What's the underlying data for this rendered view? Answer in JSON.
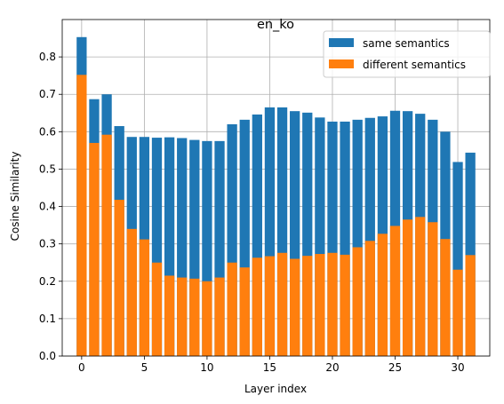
{
  "chart_data": {
    "type": "bar",
    "title": "en_ko",
    "xlabel": "Layer index",
    "ylabel": "Cosine Similarity",
    "xlim": [
      -1.55,
      32.55
    ],
    "ylim": [
      0.0,
      0.9
    ],
    "x_ticks": [
      0,
      5,
      10,
      15,
      20,
      25,
      30
    ],
    "y_ticks": [
      0.0,
      0.1,
      0.2,
      0.3,
      0.4,
      0.5,
      0.6,
      0.7,
      0.8
    ],
    "x": [
      0,
      1,
      2,
      3,
      4,
      5,
      6,
      7,
      8,
      9,
      10,
      11,
      12,
      13,
      14,
      15,
      16,
      17,
      18,
      19,
      20,
      21,
      22,
      23,
      24,
      25,
      26,
      27,
      28,
      29,
      30,
      31
    ],
    "series": [
      {
        "name": "same semantics",
        "color": "#1f77b4",
        "values": [
          0.853,
          0.687,
          0.7,
          0.615,
          0.586,
          0.586,
          0.584,
          0.585,
          0.583,
          0.578,
          0.575,
          0.575,
          0.62,
          0.632,
          0.646,
          0.665,
          0.665,
          0.655,
          0.651,
          0.638,
          0.627,
          0.627,
          0.632,
          0.637,
          0.641,
          0.656,
          0.655,
          0.648,
          0.632,
          0.6,
          0.519,
          0.544
        ]
      },
      {
        "name": "different semantics",
        "color": "#ff7f0e",
        "values": [
          0.752,
          0.57,
          0.592,
          0.418,
          0.34,
          0.312,
          0.25,
          0.215,
          0.21,
          0.207,
          0.2,
          0.21,
          0.25,
          0.237,
          0.263,
          0.267,
          0.276,
          0.26,
          0.268,
          0.273,
          0.276,
          0.271,
          0.291,
          0.308,
          0.327,
          0.348,
          0.365,
          0.372,
          0.358,
          0.313,
          0.231,
          0.27
        ]
      }
    ],
    "grid": true,
    "legend_position": "top-right"
  }
}
